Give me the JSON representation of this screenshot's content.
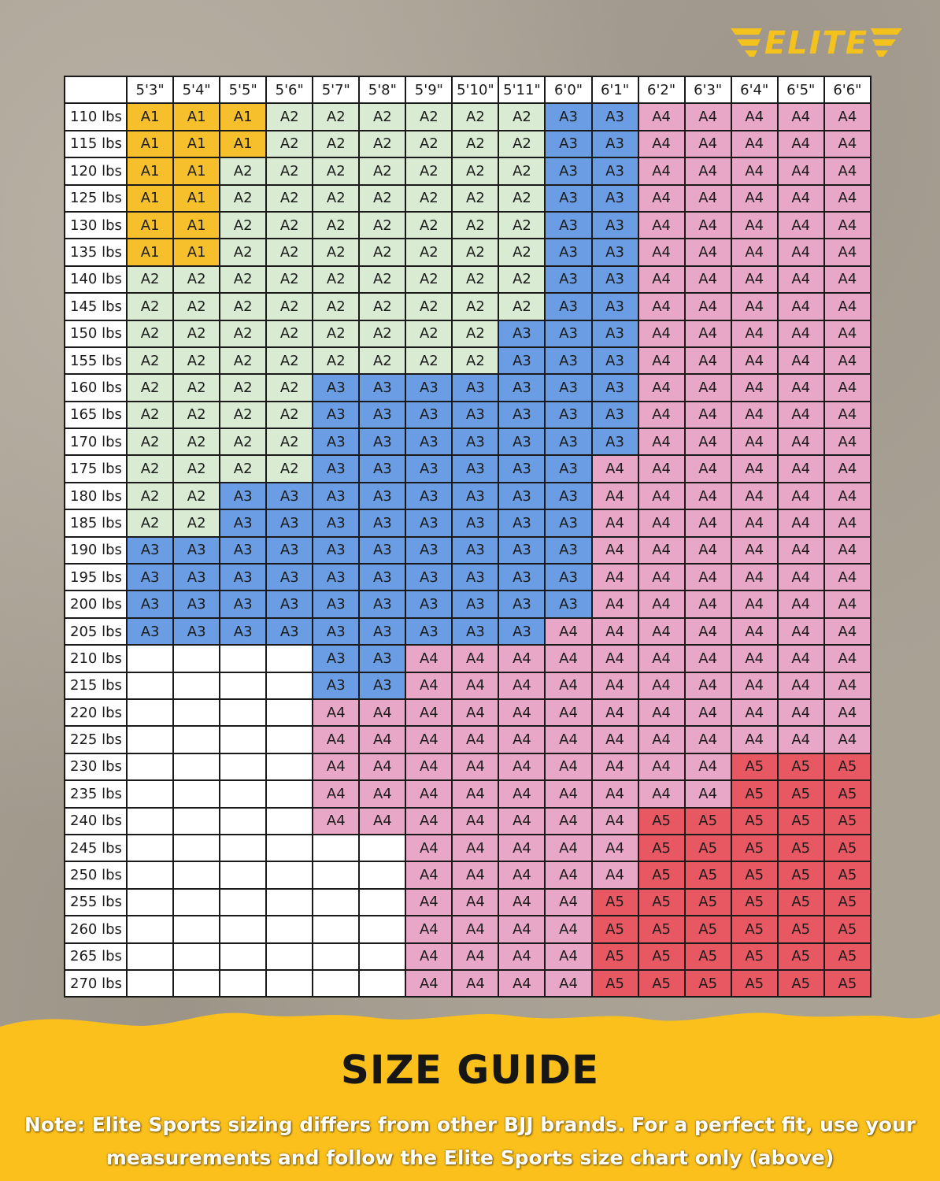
{
  "brand": {
    "logo_text": "ELITE",
    "accent_color": "#f4c21c"
  },
  "footer": {
    "title": "SIZE GUIDE",
    "note": "Note: Elite Sports sizing differs from other BJJ brands. For a perfect fit, use your measurements and follow the Elite Sports size chart only (above)",
    "background_color": "#fbc01b"
  },
  "size_colors": {
    "A1": "#f6c02c",
    "A2": "#d9ecd3",
    "A3": "#6a9de3",
    "A4": "#e8a7c6",
    "A5": "#e85862"
  },
  "chart_data": {
    "type": "table",
    "columns": [
      "5'3\"",
      "5'4\"",
      "5'5\"",
      "5'6\"",
      "5'7\"",
      "5'8\"",
      "5'9\"",
      "5'10\"",
      "5'11\"",
      "6'0\"",
      "6'1\"",
      "6'2\"",
      "6'3\"",
      "6'4\"",
      "6'5\"",
      "6'6\""
    ],
    "rows": [
      "110 lbs",
      "115 lbs",
      "120 lbs",
      "125 lbs",
      "130 lbs",
      "135 lbs",
      "140 lbs",
      "145 lbs",
      "150 lbs",
      "155 lbs",
      "160 lbs",
      "165 lbs",
      "170 lbs",
      "175 lbs",
      "180 lbs",
      "185 lbs",
      "190 lbs",
      "195 lbs",
      "200 lbs",
      "205 lbs",
      "210 lbs",
      "215 lbs",
      "220 lbs",
      "225 lbs",
      "230 lbs",
      "235 lbs",
      "240 lbs",
      "245 lbs",
      "250 lbs",
      "255 lbs",
      "260 lbs",
      "265 lbs",
      "270 lbs"
    ],
    "cells": [
      [
        "A1",
        "A1",
        "A1",
        "A2",
        "A2",
        "A2",
        "A2",
        "A2",
        "A2",
        "A3",
        "A3",
        "A4",
        "A4",
        "A4",
        "A4",
        "A4"
      ],
      [
        "A1",
        "A1",
        "A1",
        "A2",
        "A2",
        "A2",
        "A2",
        "A2",
        "A2",
        "A3",
        "A3",
        "A4",
        "A4",
        "A4",
        "A4",
        "A4"
      ],
      [
        "A1",
        "A1",
        "A2",
        "A2",
        "A2",
        "A2",
        "A2",
        "A2",
        "A2",
        "A3",
        "A3",
        "A4",
        "A4",
        "A4",
        "A4",
        "A4"
      ],
      [
        "A1",
        "A1",
        "A2",
        "A2",
        "A2",
        "A2",
        "A2",
        "A2",
        "A2",
        "A3",
        "A3",
        "A4",
        "A4",
        "A4",
        "A4",
        "A4"
      ],
      [
        "A1",
        "A1",
        "A2",
        "A2",
        "A2",
        "A2",
        "A2",
        "A2",
        "A2",
        "A3",
        "A3",
        "A4",
        "A4",
        "A4",
        "A4",
        "A4"
      ],
      [
        "A1",
        "A1",
        "A2",
        "A2",
        "A2",
        "A2",
        "A2",
        "A2",
        "A2",
        "A3",
        "A3",
        "A4",
        "A4",
        "A4",
        "A4",
        "A4"
      ],
      [
        "A2",
        "A2",
        "A2",
        "A2",
        "A2",
        "A2",
        "A2",
        "A2",
        "A2",
        "A3",
        "A3",
        "A4",
        "A4",
        "A4",
        "A4",
        "A4"
      ],
      [
        "A2",
        "A2",
        "A2",
        "A2",
        "A2",
        "A2",
        "A2",
        "A2",
        "A2",
        "A3",
        "A3",
        "A4",
        "A4",
        "A4",
        "A4",
        "A4"
      ],
      [
        "A2",
        "A2",
        "A2",
        "A2",
        "A2",
        "A2",
        "A2",
        "A2",
        "A3",
        "A3",
        "A3",
        "A4",
        "A4",
        "A4",
        "A4",
        "A4"
      ],
      [
        "A2",
        "A2",
        "A2",
        "A2",
        "A2",
        "A2",
        "A2",
        "A2",
        "A3",
        "A3",
        "A3",
        "A4",
        "A4",
        "A4",
        "A4",
        "A4"
      ],
      [
        "A2",
        "A2",
        "A2",
        "A2",
        "A3",
        "A3",
        "A3",
        "A3",
        "A3",
        "A3",
        "A3",
        "A4",
        "A4",
        "A4",
        "A4",
        "A4"
      ],
      [
        "A2",
        "A2",
        "A2",
        "A2",
        "A3",
        "A3",
        "A3",
        "A3",
        "A3",
        "A3",
        "A3",
        "A4",
        "A4",
        "A4",
        "A4",
        "A4"
      ],
      [
        "A2",
        "A2",
        "A2",
        "A2",
        "A3",
        "A3",
        "A3",
        "A3",
        "A3",
        "A3",
        "A3",
        "A4",
        "A4",
        "A4",
        "A4",
        "A4"
      ],
      [
        "A2",
        "A2",
        "A2",
        "A2",
        "A3",
        "A3",
        "A3",
        "A3",
        "A3",
        "A3",
        "A4",
        "A4",
        "A4",
        "A4",
        "A4",
        "A4"
      ],
      [
        "A2",
        "A2",
        "A3",
        "A3",
        "A3",
        "A3",
        "A3",
        "A3",
        "A3",
        "A3",
        "A4",
        "A4",
        "A4",
        "A4",
        "A4",
        "A4"
      ],
      [
        "A2",
        "A2",
        "A3",
        "A3",
        "A3",
        "A3",
        "A3",
        "A3",
        "A3",
        "A3",
        "A4",
        "A4",
        "A4",
        "A4",
        "A4",
        "A4"
      ],
      [
        "A3",
        "A3",
        "A3",
        "A3",
        "A3",
        "A3",
        "A3",
        "A3",
        "A3",
        "A3",
        "A4",
        "A4",
        "A4",
        "A4",
        "A4",
        "A4"
      ],
      [
        "A3",
        "A3",
        "A3",
        "A3",
        "A3",
        "A3",
        "A3",
        "A3",
        "A3",
        "A3",
        "A4",
        "A4",
        "A4",
        "A4",
        "A4",
        "A4"
      ],
      [
        "A3",
        "A3",
        "A3",
        "A3",
        "A3",
        "A3",
        "A3",
        "A3",
        "A3",
        "A3",
        "A4",
        "A4",
        "A4",
        "A4",
        "A4",
        "A4"
      ],
      [
        "A3",
        "A3",
        "A3",
        "A3",
        "A3",
        "A3",
        "A3",
        "A3",
        "A3",
        "A4",
        "A4",
        "A4",
        "A4",
        "A4",
        "A4",
        "A4"
      ],
      [
        "",
        "",
        "",
        "",
        "A3",
        "A3",
        "A4",
        "A4",
        "A4",
        "A4",
        "A4",
        "A4",
        "A4",
        "A4",
        "A4",
        "A4"
      ],
      [
        "",
        "",
        "",
        "",
        "A3",
        "A3",
        "A4",
        "A4",
        "A4",
        "A4",
        "A4",
        "A4",
        "A4",
        "A4",
        "A4",
        "A4"
      ],
      [
        "",
        "",
        "",
        "",
        "A4",
        "A4",
        "A4",
        "A4",
        "A4",
        "A4",
        "A4",
        "A4",
        "A4",
        "A4",
        "A4",
        "A4"
      ],
      [
        "",
        "",
        "",
        "",
        "A4",
        "A4",
        "A4",
        "A4",
        "A4",
        "A4",
        "A4",
        "A4",
        "A4",
        "A4",
        "A4",
        "A4"
      ],
      [
        "",
        "",
        "",
        "",
        "A4",
        "A4",
        "A4",
        "A4",
        "A4",
        "A4",
        "A4",
        "A4",
        "A4",
        "A5",
        "A5",
        "A5"
      ],
      [
        "",
        "",
        "",
        "",
        "A4",
        "A4",
        "A4",
        "A4",
        "A4",
        "A4",
        "A4",
        "A4",
        "A4",
        "A5",
        "A5",
        "A5"
      ],
      [
        "",
        "",
        "",
        "",
        "A4",
        "A4",
        "A4",
        "A4",
        "A4",
        "A4",
        "A4",
        "A5",
        "A5",
        "A5",
        "A5",
        "A5"
      ],
      [
        "",
        "",
        "",
        "",
        "",
        "",
        "A4",
        "A4",
        "A4",
        "A4",
        "A4",
        "A5",
        "A5",
        "A5",
        "A5",
        "A5"
      ],
      [
        "",
        "",
        "",
        "",
        "",
        "",
        "A4",
        "A4",
        "A4",
        "A4",
        "A4",
        "A5",
        "A5",
        "A5",
        "A5",
        "A5"
      ],
      [
        "",
        "",
        "",
        "",
        "",
        "",
        "A4",
        "A4",
        "A4",
        "A4",
        "A5",
        "A5",
        "A5",
        "A5",
        "A5",
        "A5"
      ],
      [
        "",
        "",
        "",
        "",
        "",
        "",
        "A4",
        "A4",
        "A4",
        "A4",
        "A5",
        "A5",
        "A5",
        "A5",
        "A5",
        "A5"
      ],
      [
        "",
        "",
        "",
        "",
        "",
        "",
        "A4",
        "A4",
        "A4",
        "A4",
        "A5",
        "A5",
        "A5",
        "A5",
        "A5",
        "A5"
      ],
      [
        "",
        "",
        "",
        "",
        "",
        "",
        "A4",
        "A4",
        "A4",
        "A4",
        "A5",
        "A5",
        "A5",
        "A5",
        "A5",
        "A5"
      ]
    ]
  }
}
